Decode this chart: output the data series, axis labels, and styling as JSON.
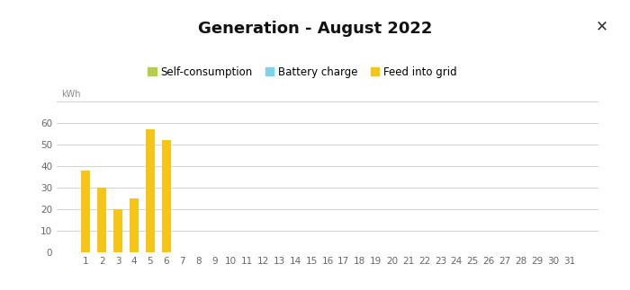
{
  "title": "Generation - August 2022",
  "ylabel": "kWh",
  "x_labels": [
    "1",
    "2",
    "3",
    "4",
    "5",
    "6",
    "7",
    "8",
    "9",
    "10",
    "11",
    "12",
    "13",
    "14",
    "15",
    "16",
    "17",
    "18",
    "19",
    "20",
    "21",
    "22",
    "23",
    "24",
    "25",
    "26",
    "27",
    "28",
    "29",
    "30",
    "31"
  ],
  "days": 31,
  "feed_into_grid": [
    38,
    30,
    20,
    25,
    57,
    52,
    0,
    0,
    0,
    0,
    0,
    0,
    0,
    0,
    0,
    0,
    0,
    0,
    0,
    0,
    0,
    0,
    0,
    0,
    0,
    0,
    0,
    0,
    0,
    0,
    0
  ],
  "self_consumption": [
    0,
    0,
    0,
    0,
    0,
    0,
    0,
    0,
    0,
    0,
    0,
    0,
    0,
    0,
    0,
    0,
    0,
    0,
    0,
    0,
    0,
    0,
    0,
    0,
    0,
    0,
    0,
    0,
    0,
    0,
    0
  ],
  "battery_charge": [
    0,
    0,
    0,
    0,
    0,
    0,
    0,
    0,
    0,
    0,
    0,
    0,
    0,
    0,
    0,
    0,
    0,
    0,
    0,
    0,
    0,
    0,
    0,
    0,
    0,
    0,
    0,
    0,
    0,
    0,
    0
  ],
  "color_self_consumption": "#b5cc4f",
  "color_battery_charge": "#7dd4e8",
  "color_feed_into_grid": "#f5c518",
  "ylim_max": 70,
  "yticks": [
    0,
    10,
    20,
    30,
    40,
    50,
    60
  ],
  "background_color": "#ffffff",
  "grid_color": "#cccccc",
  "title_fontsize": 13,
  "legend_fontsize": 8.5,
  "tick_fontsize": 7.5,
  "kwh_fontsize": 7,
  "bar_width": 0.55,
  "legend_labels": [
    "Self-consumption",
    "Battery charge",
    "Feed into grid"
  ]
}
